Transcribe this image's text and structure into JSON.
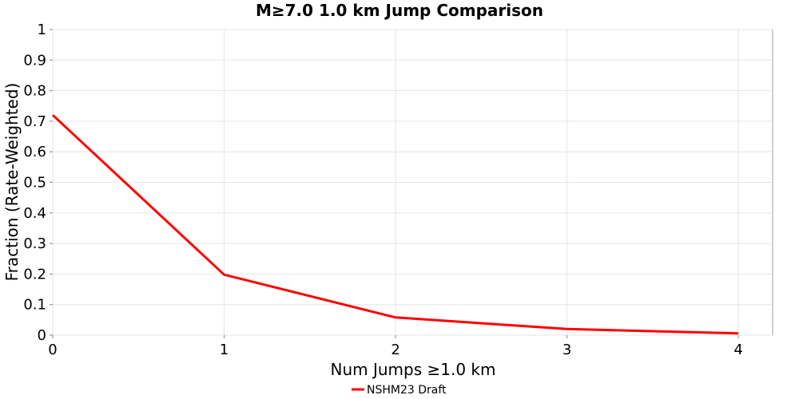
{
  "chart_data": {
    "type": "line",
    "title": "M≥7.0 1.0 km Jump Comparison",
    "xlabel": "Num Jumps ≥1.0 km",
    "ylabel": "Fraction (Rate-Weighted)",
    "xlim": [
      0,
      4.2
    ],
    "ylim": [
      0,
      1
    ],
    "x_ticks": [
      0,
      1,
      2,
      3,
      4
    ],
    "y_ticks": [
      0,
      0.1,
      0.2,
      0.3,
      0.4,
      0.5,
      0.6,
      0.7,
      0.8,
      0.9,
      1
    ],
    "y_tick_labels": [
      "0",
      "0.1",
      "0.2",
      "0.3",
      "0.4",
      "0.5",
      "0.6",
      "0.7",
      "0.8",
      "0.9",
      "1"
    ],
    "grid": true,
    "legend_position": "bottom-center",
    "series": [
      {
        "name": "NSHM23 Draft",
        "color": "#ff0000",
        "x": [
          0,
          1,
          2,
          3,
          4
        ],
        "y": [
          0.72,
          0.198,
          0.058,
          0.02,
          0.006
        ]
      }
    ]
  }
}
